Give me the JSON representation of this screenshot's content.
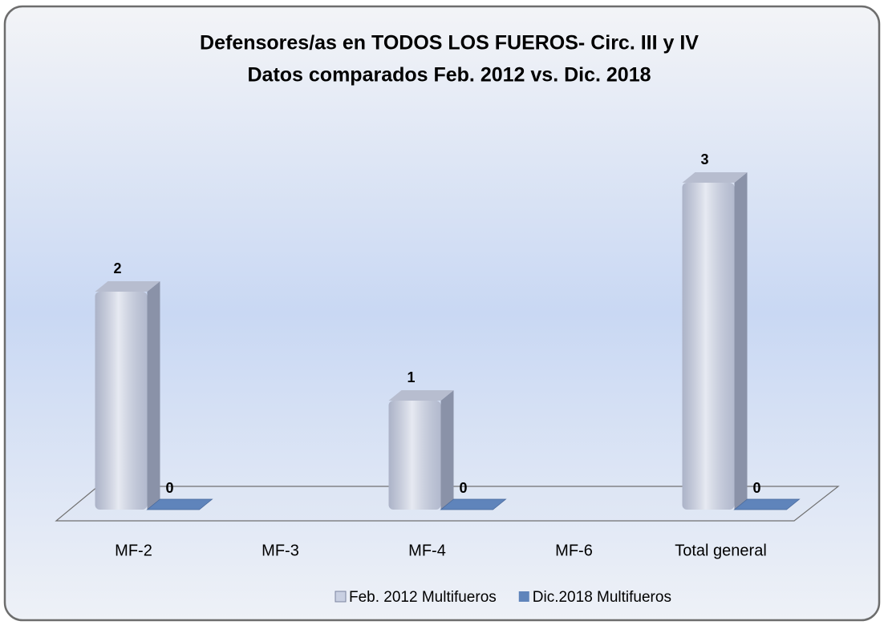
{
  "chart_data": {
    "type": "bar3d",
    "title": "Defensores/as en TODOS LOS FUEROS- Circ. III y IV",
    "subtitle": "Datos comparados Feb. 2012 vs. Dic. 2018",
    "categories": [
      "MF-2",
      "MF-3",
      "MF-4",
      "MF-6",
      "Total general"
    ],
    "series": [
      {
        "name": "Feb. 2012 Multifueros",
        "color": "#c9d0e2",
        "values": [
          2,
          null,
          1,
          null,
          3
        ]
      },
      {
        "name": "Dic.2018 Multifueros",
        "color": "#5f84bb",
        "values": [
          0,
          null,
          0,
          null,
          0
        ]
      }
    ],
    "legend": "bottom"
  }
}
